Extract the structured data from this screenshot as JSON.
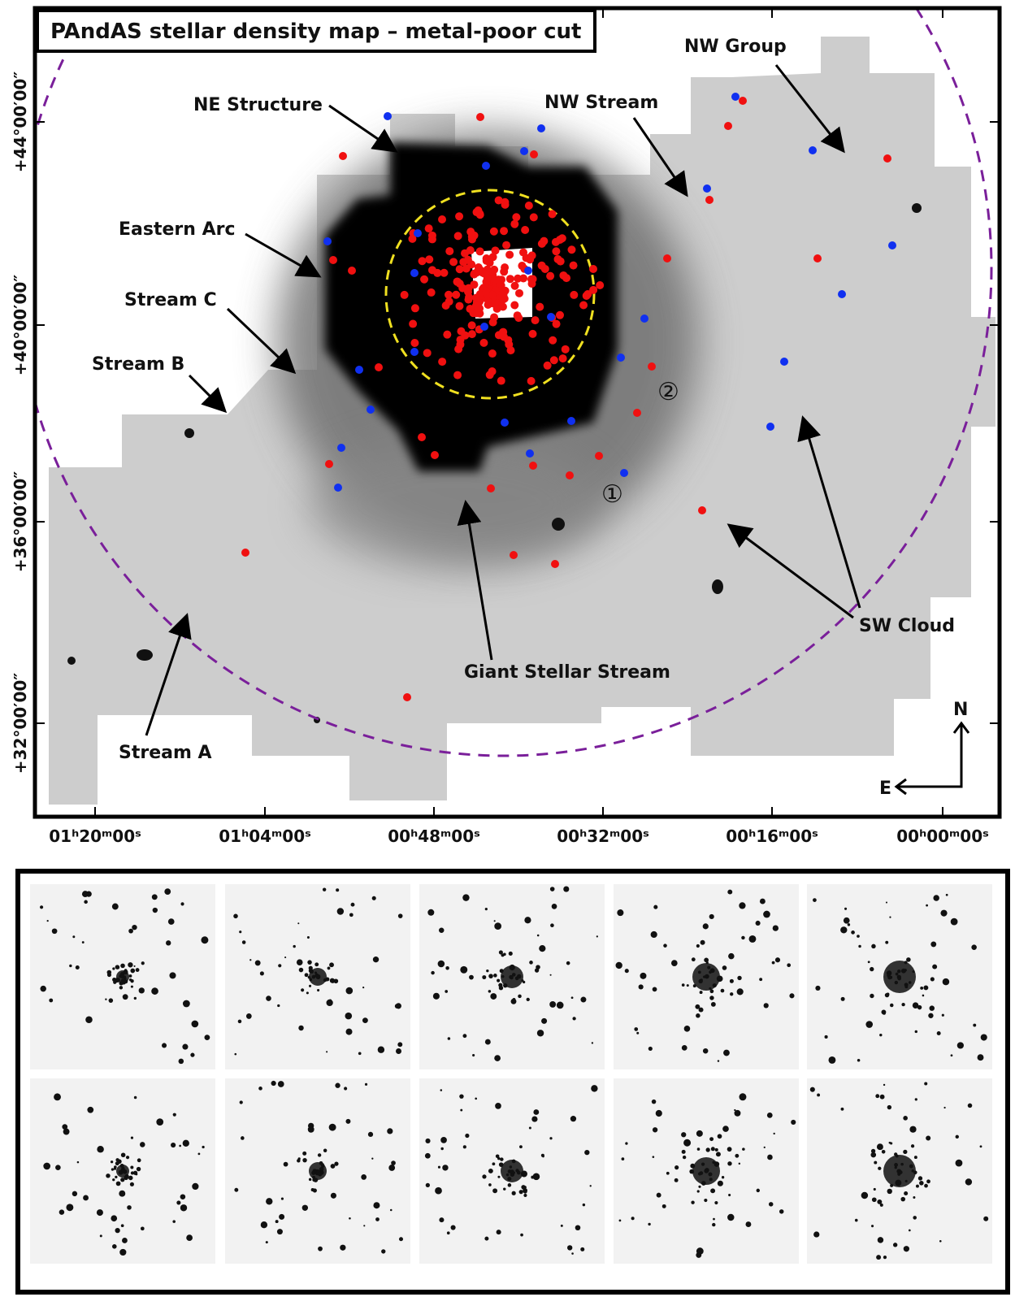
{
  "header": {
    "title": "PAndAS stellar density map – metal-poor cut"
  },
  "map": {
    "y_tick_labels": [
      "+44°00′00″",
      "+40°00′00″",
      "+36°00′00″",
      "+32°00′00″"
    ],
    "x_tick_labels": [
      "01ʰ20ᵐ00ˢ",
      "01ʰ04ᵐ00ˢ",
      "00ʰ48ᵐ00ˢ",
      "00ʰ32ᵐ00ˢ",
      "00ʰ16ᵐ00ˢ",
      "00ʰ00ᵐ00ˢ"
    ],
    "annotations": [
      "NE Structure",
      "NW Stream",
      "NW Group",
      "Eastern Arc",
      "Stream C",
      "Stream B",
      "Stream A",
      "Giant Stellar Stream",
      "SW Cloud"
    ],
    "field_labels": [
      "①",
      "②"
    ],
    "compass": {
      "north": "N",
      "east": "E"
    }
  }
}
